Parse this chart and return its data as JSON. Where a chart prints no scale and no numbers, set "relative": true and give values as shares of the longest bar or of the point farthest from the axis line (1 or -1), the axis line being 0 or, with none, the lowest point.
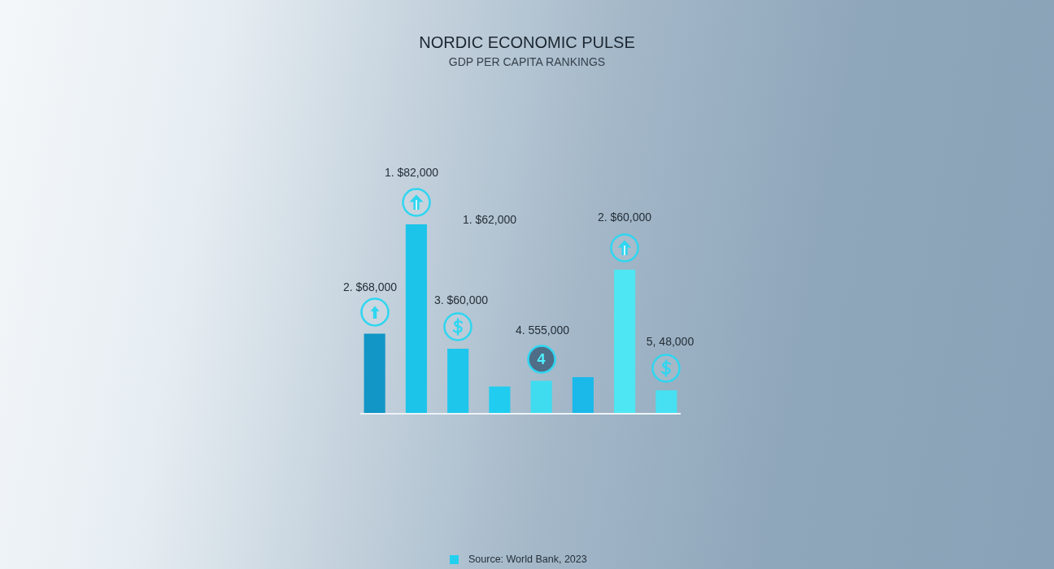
{
  "chart_data": {
    "type": "bar",
    "title": "NORDIC ECONOMIC PULSE",
    "subtitle": "GDP PER CAPITA RANKINGS",
    "categories": [
      null,
      null,
      null,
      null,
      null,
      null,
      null,
      null
    ],
    "values": [
      0.42,
      1,
      0.34,
      0.14,
      0.17,
      0.19,
      0.76,
      0.12
    ],
    "colors": [
      "#1196c6",
      "#1cc4ea",
      "#1ec6ec",
      "#20ccf0",
      "#3fdcf0",
      "#1ab9ea",
      "#4ee6f2",
      "#46e0f2"
    ],
    "relative": true,
    "annotations": [
      "2. $68,000",
      "1. $82,000",
      "1. $62,000",
      "3. $60,000",
      "4. 555,000",
      "4",
      "2. $60,000",
      "5, 48,000",
      "Source: World Bank, 2023"
    ]
  }
}
